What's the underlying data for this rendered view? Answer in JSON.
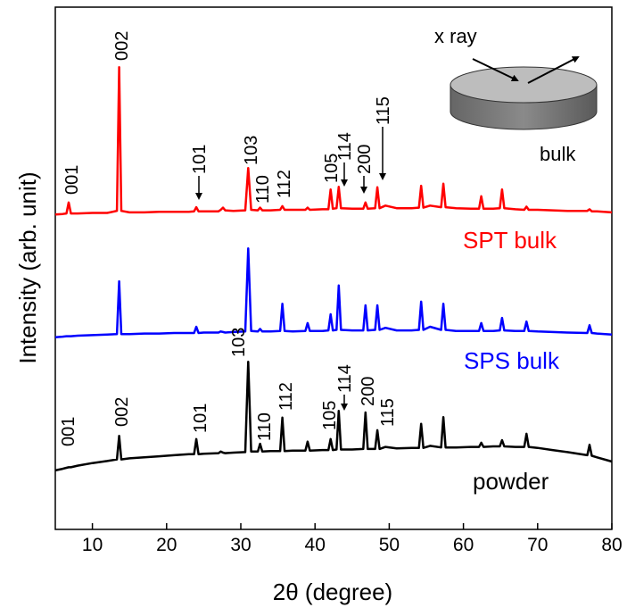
{
  "chart_data": {
    "type": "line",
    "xlabel": "2θ (degree)",
    "ylabel": "Intensity (arb. unit)",
    "xlim": [
      5,
      80
    ],
    "xticks": [
      10,
      20,
      30,
      40,
      50,
      60,
      70,
      80
    ],
    "ylim": [
      0,
      100
    ],
    "annotations": [
      "x ray",
      "bulk"
    ],
    "x": [
      5,
      6,
      6.5,
      6.8,
      7.1,
      8,
      10,
      12,
      13.3,
      13.6,
      13.9,
      15,
      17,
      19,
      21,
      23,
      23.7,
      24,
      24.3,
      25,
      27,
      27.3,
      27.6,
      27.9,
      29,
      30.6,
      31,
      31.4,
      32.3,
      32.6,
      32.9,
      34,
      35.3,
      35.6,
      35.9,
      37,
      38.7,
      39,
      39.3,
      41,
      41.8,
      42.1,
      42.4,
      42.9,
      43.2,
      43.5,
      45,
      46.5,
      46.8,
      47.1,
      48.1,
      48.4,
      48.7,
      49.5,
      51,
      53,
      54,
      54.3,
      54.6,
      55.5,
      57,
      57.3,
      57.6,
      59,
      61,
      62.1,
      62.4,
      62.7,
      64,
      64.9,
      65.2,
      65.5,
      67,
      68.2,
      68.5,
      68.8,
      70,
      72,
      74,
      76.7,
      77,
      77.3,
      78,
      80
    ],
    "series": [
      {
        "name": "SPT bulk",
        "color": "#ff0000",
        "peak_labels": [
          "001",
          "002",
          "101",
          "103",
          "110",
          "112",
          "105",
          "114",
          "200",
          "115"
        ],
        "values": [
          60.3,
          60.4,
          60.5,
          62.6,
          60.5,
          60.5,
          60.6,
          60.6,
          61,
          88.5,
          61,
          60.7,
          60.7,
          60.8,
          60.8,
          60.8,
          60.9,
          61.7,
          60.9,
          60.9,
          60.9,
          61.2,
          61.6,
          61.1,
          61,
          61.1,
          69.2,
          61.2,
          61.1,
          61.6,
          61.1,
          61.1,
          61.2,
          61.9,
          61.2,
          61.2,
          61.2,
          61.6,
          61.2,
          61.3,
          61.3,
          65.1,
          61.4,
          61.5,
          65.6,
          61.5,
          61.4,
          61.4,
          62.6,
          61.4,
          61.5,
          65.5,
          61.5,
          62,
          61.5,
          61.5,
          61.6,
          65.8,
          61.6,
          62,
          61.7,
          66.2,
          61.7,
          61.5,
          61.4,
          61.4,
          63.8,
          61.4,
          61.4,
          61.5,
          65.1,
          61.5,
          61.3,
          61.2,
          61.8,
          61.2,
          61.2,
          61.1,
          61,
          61,
          61.3,
          60.9,
          60.9,
          60.7
        ]
      },
      {
        "name": "SPS bulk",
        "color": "#0000ff",
        "values": [
          36.8,
          36.9,
          37,
          37,
          37,
          37.1,
          37.2,
          37.3,
          37.4,
          47.5,
          37.4,
          37.4,
          37.5,
          37.5,
          37.6,
          37.6,
          37.6,
          38.8,
          37.6,
          37.7,
          37.7,
          37.9,
          37.8,
          37.7,
          37.8,
          37.9,
          53.8,
          38,
          37.9,
          38.4,
          37.9,
          37.9,
          38,
          43.2,
          38,
          37.9,
          38,
          39.5,
          38,
          38,
          38.1,
          41.2,
          38.1,
          38.2,
          46.7,
          38.2,
          38.1,
          38.1,
          42.9,
          38.1,
          38.2,
          42.9,
          38.2,
          38.6,
          38.1,
          38.1,
          38.2,
          43.6,
          38.2,
          38.8,
          38.2,
          43.2,
          38.2,
          38,
          38,
          38,
          39.5,
          38,
          38,
          38.1,
          40.5,
          38.1,
          38,
          38,
          39.8,
          38,
          37.9,
          37.8,
          37.7,
          37.6,
          39.1,
          37.6,
          37.5,
          37.3
        ]
      },
      {
        "name": "powder",
        "color": "#000000",
        "peak_labels": [
          "001",
          "002",
          "101",
          "103",
          "110",
          "112",
          "105",
          "114",
          "200",
          "115"
        ],
        "values": [
          11.3,
          11.6,
          11.8,
          11.9,
          11.9,
          12.2,
          12.7,
          13.1,
          13.4,
          17.9,
          13.4,
          13.6,
          13.8,
          14,
          14.2,
          14.4,
          14.4,
          17.3,
          14.4,
          14.5,
          14.6,
          14.9,
          14.7,
          14.6,
          14.7,
          14.8,
          32.1,
          14.9,
          14.9,
          16.4,
          14.9,
          15,
          15,
          21.4,
          15,
          15.1,
          15.1,
          16.8,
          15.1,
          15.2,
          15.2,
          17.3,
          15.2,
          15.3,
          22.7,
          15.3,
          15.3,
          15.4,
          22.4,
          15.4,
          15.4,
          19,
          15.4,
          15.8,
          15.5,
          15.6,
          15.6,
          20.2,
          15.6,
          16,
          15.7,
          21.5,
          15.7,
          15.7,
          15.8,
          15.8,
          16.6,
          15.8,
          15.9,
          15.9,
          17.1,
          15.9,
          15.8,
          15.8,
          18.3,
          15.8,
          15.6,
          15.2,
          14.8,
          14.2,
          16.2,
          14.1,
          13.8,
          13
        ]
      }
    ]
  }
}
